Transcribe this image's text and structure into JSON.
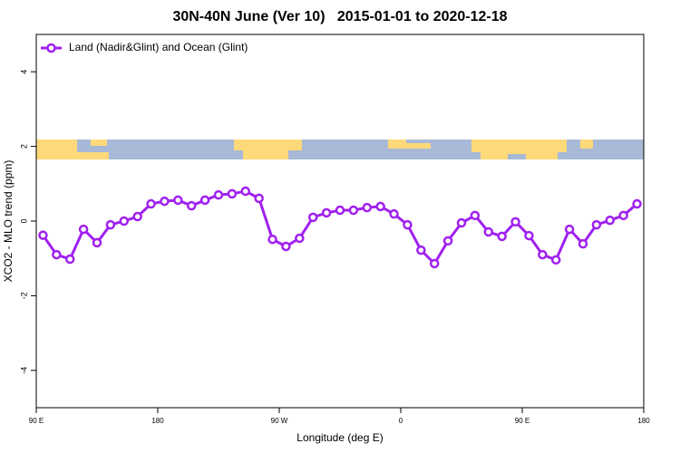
{
  "chart_data": {
    "type": "line",
    "title": "30N-40N June (Ver 10)   2015-01-01 to 2020-12-18",
    "xlabel": "Longitude (deg E)",
    "ylabel": "XCO2 - MLO trend (ppm)",
    "x": [
      95,
      105,
      115,
      125,
      135,
      145,
      155,
      165,
      175,
      185,
      195,
      205,
      215,
      225,
      235,
      245,
      255,
      265,
      275,
      285,
      295,
      305,
      315,
      325,
      335,
      345,
      355,
      365,
      375,
      385,
      395,
      405,
      415,
      425,
      435,
      445,
      455,
      465,
      475,
      485,
      495,
      505,
      515,
      525,
      535
    ],
    "series": [
      {
        "name": "Land (Nadir&Glint) and Ocean (Glint)",
        "color": "#a020f0",
        "values": [
          -0.38,
          -0.9,
          -1.02,
          -0.22,
          -0.58,
          -0.1,
          0.0,
          0.12,
          0.46,
          0.53,
          0.56,
          0.41,
          0.56,
          0.7,
          0.73,
          0.8,
          0.61,
          -0.49,
          -0.68,
          -0.46,
          0.1,
          0.22,
          0.29,
          0.29,
          0.36,
          0.39,
          0.19,
          -0.1,
          -0.78,
          -1.14,
          -0.53,
          -0.05,
          0.15,
          -0.29,
          -0.41,
          -0.02,
          -0.39,
          -0.9,
          -1.04,
          -0.22,
          -0.61,
          -0.1,
          0.02,
          0.15,
          0.46
        ]
      }
    ],
    "xlim": [
      90,
      540
    ],
    "xticks": [
      {
        "value": 90,
        "label": "90 E"
      },
      180,
      {
        "value": 270,
        "label": "90 W"
      },
      {
        "value": 360,
        "label": "0"
      },
      {
        "value": 450,
        "label": "90 E"
      },
      {
        "value": 540,
        "label": "180"
      }
    ],
    "ylim": [
      -5,
      5
    ],
    "yticks": [
      -4,
      -2,
      0,
      2,
      4
    ],
    "legend": "top-left"
  }
}
